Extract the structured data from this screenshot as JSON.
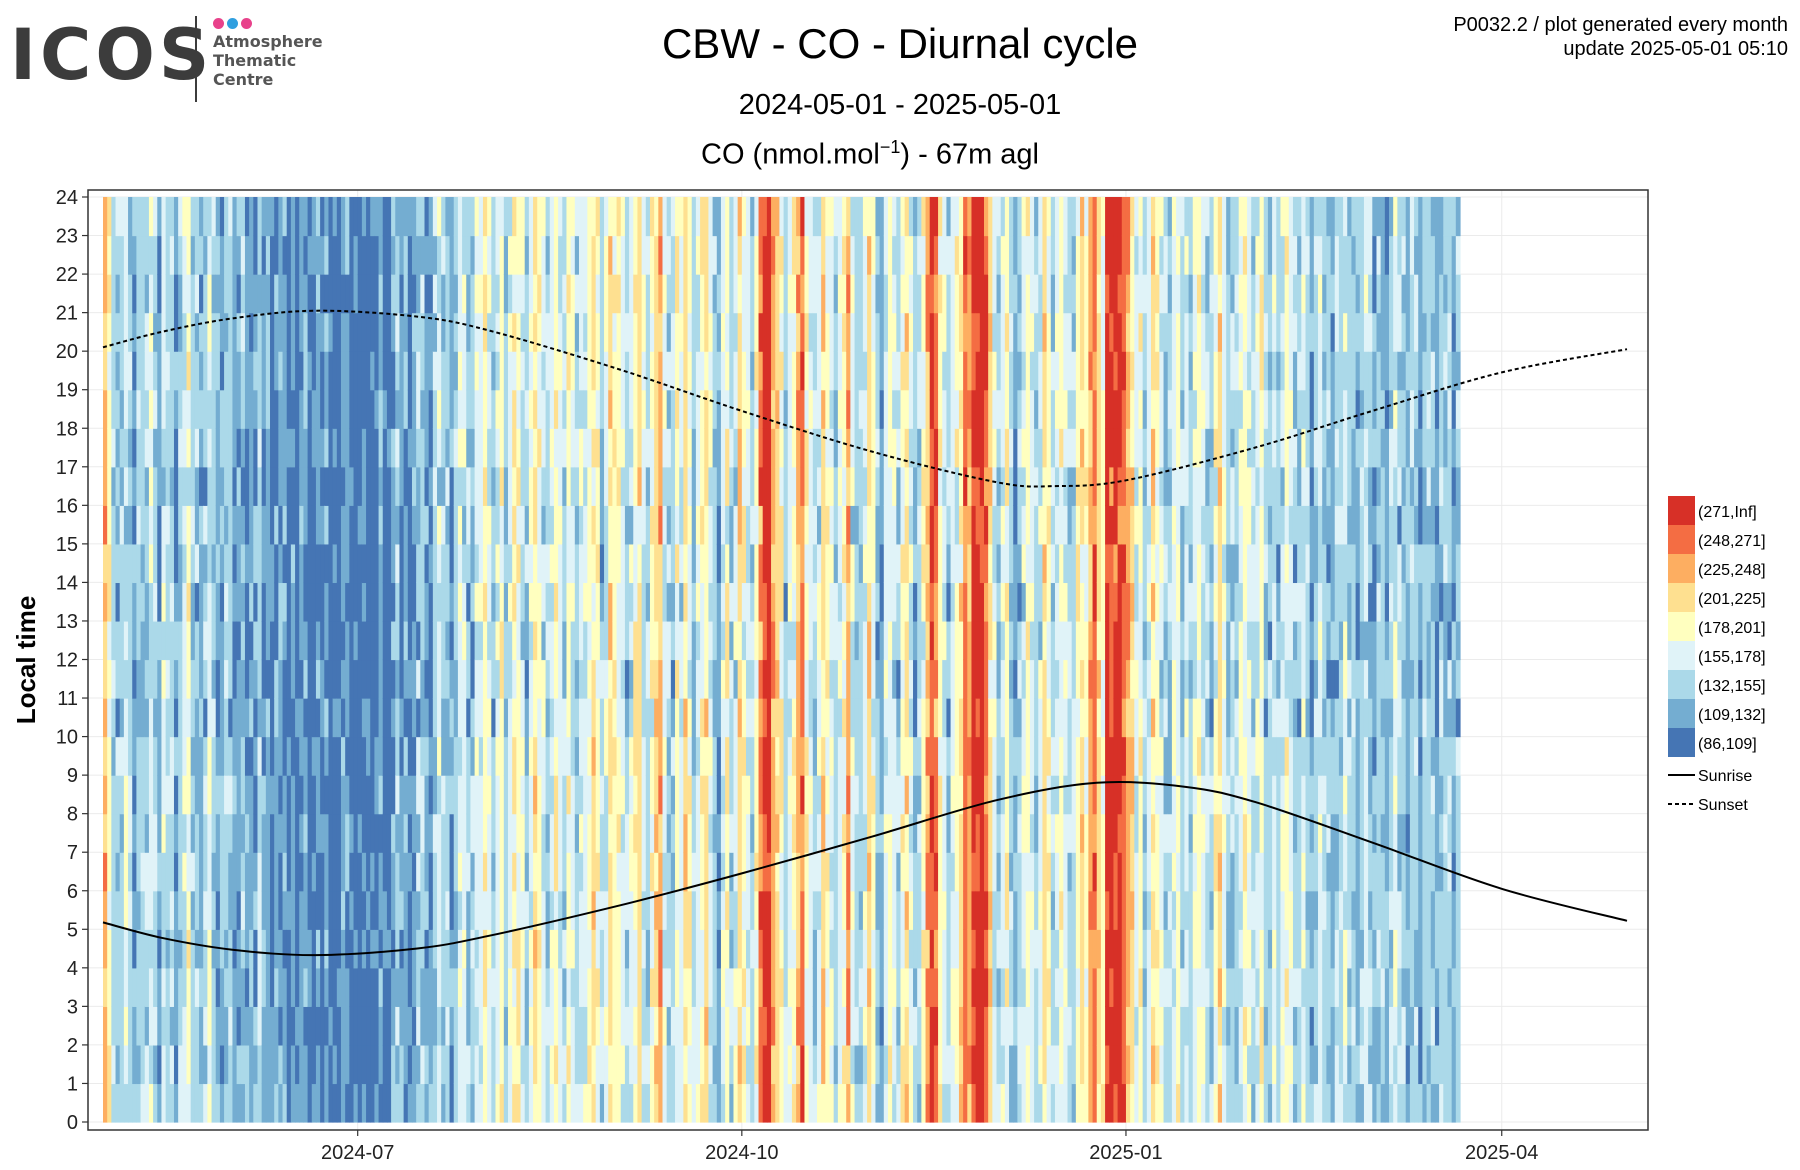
{
  "header": {
    "logo_text": "ICOS",
    "logo_subtitle": [
      "Atmosphere",
      "Thematic",
      "Centre"
    ],
    "logo_dot_colors": [
      "#e8428b",
      "#2f9fdf",
      "#e8428b"
    ],
    "title": "CBW - CO - Diurnal cycle",
    "period": "2024-05-01 - 2025-05-01",
    "product_code": "P0032.2 / plot generated every month",
    "update": "update  2025-05-01 05:10"
  },
  "chart_data": {
    "type": "heatmap",
    "title": "CBW - CO - Diurnal cycle",
    "subtitle": "2024-05-01 - 2025-05-01",
    "measure_title": {
      "prefix": "CO (nmol.mol",
      "sup": "−1",
      "suffix": ") - 67m agl"
    },
    "xlabel": "",
    "ylabel": "Local time",
    "x_range": [
      "2024-05-01",
      "2025-05-01"
    ],
    "x_ticks": [
      {
        "date": "2024-07-01",
        "label": "2024-07"
      },
      {
        "date": "2024-10-01",
        "label": "2024-10"
      },
      {
        "date": "2025-01-01",
        "label": "2025-01"
      },
      {
        "date": "2025-04-01",
        "label": "2025-04"
      }
    ],
    "y_range": [
      0,
      24
    ],
    "y_ticks": [
      0,
      1,
      2,
      3,
      4,
      5,
      6,
      7,
      8,
      9,
      10,
      11,
      12,
      13,
      14,
      15,
      16,
      17,
      18,
      19,
      20,
      21,
      22,
      23,
      24
    ],
    "grid": true,
    "legend_position": "right",
    "color_classes": [
      {
        "label": "(271,Inf]",
        "color": "#d73027"
      },
      {
        "label": "(248,271]",
        "color": "#f46d43"
      },
      {
        "label": "(225,248]",
        "color": "#fdae61"
      },
      {
        "label": "(201,225]",
        "color": "#fee090"
      },
      {
        "label": "(178,201]",
        "color": "#ffffbf"
      },
      {
        "label": "(155,178]",
        "color": "#e0f3f8"
      },
      {
        "label": "(132,155]",
        "color": "#abd9e9"
      },
      {
        "label": "(109,132]",
        "color": "#74add1"
      },
      {
        "label": "(86,109]",
        "color": "#4575b4"
      }
    ],
    "daily_profile_class_index": [
      2,
      4,
      6,
      6,
      6,
      5,
      6,
      7,
      6,
      6,
      6,
      5,
      6,
      7,
      5,
      6,
      6,
      7,
      6,
      5,
      4,
      6,
      6,
      7,
      6,
      5,
      6,
      7,
      7,
      6,
      6,
      7,
      7,
      6,
      7,
      7,
      7,
      6,
      7,
      7,
      8,
      7,
      7,
      7,
      8,
      7,
      8,
      7,
      7,
      8,
      8,
      7,
      8,
      7,
      8,
      8,
      8,
      7,
      7,
      8,
      8,
      8,
      8,
      8,
      8,
      8,
      7,
      8,
      8,
      7,
      6,
      7,
      7,
      8,
      7,
      6,
      6,
      7,
      7,
      6,
      5,
      6,
      6,
      7,
      6,
      5,
      5,
      6,
      6,
      5,
      5,
      4,
      5,
      6,
      5,
      4,
      6,
      5,
      4,
      4,
      5,
      6,
      5,
      3,
      4,
      5,
      6,
      5,
      4,
      5,
      6,
      4,
      5,
      6,
      5,
      5,
      4,
      3,
      4,
      6,
      5,
      3,
      4,
      4,
      5,
      6,
      5,
      4,
      3,
      5,
      6,
      4,
      3,
      2,
      5,
      6,
      6,
      4,
      5,
      3,
      4,
      6,
      5,
      4,
      3,
      5,
      6,
      7,
      5,
      4,
      6,
      5,
      3,
      4,
      5,
      6,
      4,
      1,
      0,
      0,
      2,
      3,
      4,
      6,
      5,
      4,
      2,
      1,
      4,
      5,
      6,
      5,
      3,
      4,
      5,
      6,
      5,
      4,
      2,
      5,
      6,
      6,
      5,
      3,
      4,
      6,
      7,
      5,
      4,
      5,
      6,
      4,
      3,
      5,
      6,
      6,
      4,
      2,
      0,
      1,
      4,
      5,
      6,
      5,
      4,
      3,
      1,
      2,
      0,
      0,
      0,
      1,
      3,
      5,
      6,
      5,
      4,
      6,
      7,
      6,
      5,
      4,
      5,
      6,
      5,
      3,
      4,
      6,
      5,
      4,
      5,
      6,
      6,
      4,
      3,
      4,
      2,
      1,
      3,
      4,
      0,
      0,
      0,
      0,
      1,
      2,
      3,
      5,
      4,
      6,
      5,
      3,
      4,
      5,
      6,
      6,
      5,
      4,
      6,
      5,
      6,
      5,
      4,
      5,
      6,
      6,
      4,
      3,
      5,
      6,
      6,
      6,
      5,
      4,
      5,
      6,
      5,
      4,
      6,
      6,
      5,
      6,
      5,
      4,
      5,
      6,
      6,
      5,
      6,
      7,
      6,
      5,
      6,
      6,
      7,
      6,
      6,
      5,
      6,
      6,
      7,
      6,
      5,
      6,
      7,
      6,
      6,
      7,
      6,
      5,
      6,
      6,
      7,
      6,
      6,
      7,
      6,
      6,
      6,
      7,
      6,
      6,
      6,
      7,
      6
    ],
    "sunrise_curve": {
      "name": "Sunrise",
      "points": [
        {
          "date": "2024-05-01",
          "time": 5.18
        },
        {
          "date": "2024-05-15",
          "time": 4.78
        },
        {
          "date": "2024-06-01",
          "time": 4.47
        },
        {
          "date": "2024-06-21",
          "time": 4.33
        },
        {
          "date": "2024-07-15",
          "time": 4.5
        },
        {
          "date": "2024-08-01",
          "time": 4.82
        },
        {
          "date": "2024-09-01",
          "time": 5.6
        },
        {
          "date": "2024-10-01",
          "time": 6.45
        },
        {
          "date": "2024-11-01",
          "time": 7.4
        },
        {
          "date": "2024-12-01",
          "time": 8.35
        },
        {
          "date": "2024-12-25",
          "time": 8.8
        },
        {
          "date": "2025-01-15",
          "time": 8.7
        },
        {
          "date": "2025-02-01",
          "time": 8.3
        },
        {
          "date": "2025-03-01",
          "time": 7.25
        },
        {
          "date": "2025-04-01",
          "time": 6.05
        },
        {
          "date": "2025-05-01",
          "time": 5.22
        }
      ]
    },
    "sunset_curve": {
      "name": "Sunset",
      "points": [
        {
          "date": "2024-05-01",
          "time": 20.1
        },
        {
          "date": "2024-05-15",
          "time": 20.5
        },
        {
          "date": "2024-06-01",
          "time": 20.85
        },
        {
          "date": "2024-06-21",
          "time": 21.05
        },
        {
          "date": "2024-07-15",
          "time": 20.9
        },
        {
          "date": "2024-08-01",
          "time": 20.55
        },
        {
          "date": "2024-09-01",
          "time": 19.55
        },
        {
          "date": "2024-10-01",
          "time": 18.45
        },
        {
          "date": "2024-11-01",
          "time": 17.4
        },
        {
          "date": "2024-12-01",
          "time": 16.6
        },
        {
          "date": "2024-12-15",
          "time": 16.5
        },
        {
          "date": "2025-01-01",
          "time": 16.65
        },
        {
          "date": "2025-02-01",
          "time": 17.5
        },
        {
          "date": "2025-03-01",
          "time": 18.45
        },
        {
          "date": "2025-04-01",
          "time": 19.45
        },
        {
          "date": "2025-05-01",
          "time": 20.05
        }
      ]
    }
  }
}
